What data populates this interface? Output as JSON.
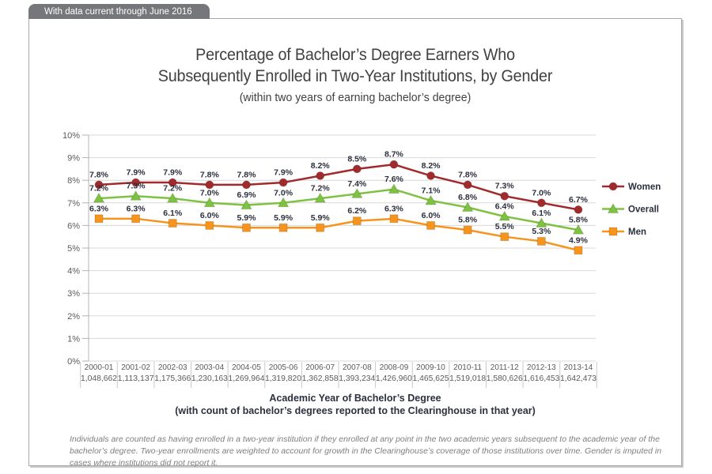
{
  "banner": {
    "label": "With data current through June 2016"
  },
  "title": {
    "line1": "Percentage of Bachelor’s Degree Earners Who",
    "line2": "Subsequently Enrolled in Two-Year Institutions, by Gender",
    "subtitle": "(within two years of earning bachelor’s degree)"
  },
  "chart_data": {
    "type": "line",
    "categories": [
      "2000-01",
      "2001-02",
      "2002-03",
      "2003-04",
      "2004-05",
      "2005-06",
      "2006-07",
      "2007-08",
      "2008-09",
      "2009-10",
      "2010-11",
      "2011-12",
      "2012-13",
      "2013-14"
    ],
    "counts": [
      "1,048,662",
      "1,113,137",
      "1,175,366",
      "1,230,163",
      "1,269,964",
      "1,319,820",
      "1,362,858",
      "1,393,234",
      "1,426,960",
      "1,465,625",
      "1,519,018",
      "1,580,626",
      "1,616,453",
      "1,642,473"
    ],
    "series": [
      {
        "name": "Women",
        "marker": "circle",
        "color": "#A12A2C",
        "values": [
          7.8,
          7.9,
          7.9,
          7.8,
          7.8,
          7.9,
          8.2,
          8.5,
          8.7,
          8.2,
          7.8,
          7.3,
          7.0,
          6.7
        ]
      },
      {
        "name": "Overall",
        "marker": "triangle",
        "color": "#7EC242",
        "values": [
          7.2,
          7.3,
          7.2,
          7.0,
          6.9,
          7.0,
          7.2,
          7.4,
          7.6,
          7.1,
          6.8,
          6.4,
          6.1,
          5.8
        ]
      },
      {
        "name": "Men",
        "marker": "square",
        "color": "#F7941E",
        "values": [
          6.3,
          6.3,
          6.1,
          6.0,
          5.9,
          5.9,
          5.9,
          6.2,
          6.3,
          6.0,
          5.8,
          5.5,
          5.3,
          4.9
        ]
      }
    ],
    "ylim": [
      0,
      10
    ],
    "yticks": [
      "0%",
      "1%",
      "2%",
      "3%",
      "4%",
      "5%",
      "6%",
      "7%",
      "8%",
      "9%",
      "10%"
    ],
    "grid": true,
    "legend_position": "right",
    "xlabel_line1": "Academic Year of Bachelor’s Degree",
    "xlabel_line2": "(with count of bachelor’s degrees reported to the Clearinghouse in that year)",
    "colors": {
      "grid": "#D8D8D8",
      "axis": "#B3B3B3",
      "tick_text": "#595B5E",
      "data_label": "#2C2F3E"
    }
  },
  "footnote": "Individuals are counted as having enrolled in a two-year institution if they enrolled at any point in the two academic years subsequent to the academic year of the bachelor’s degree. Two-year enrollments are weighted to account for growth in the Clearinghouse’s coverage of those institutions over time. Gender is imputed in cases where institutions did not report it."
}
